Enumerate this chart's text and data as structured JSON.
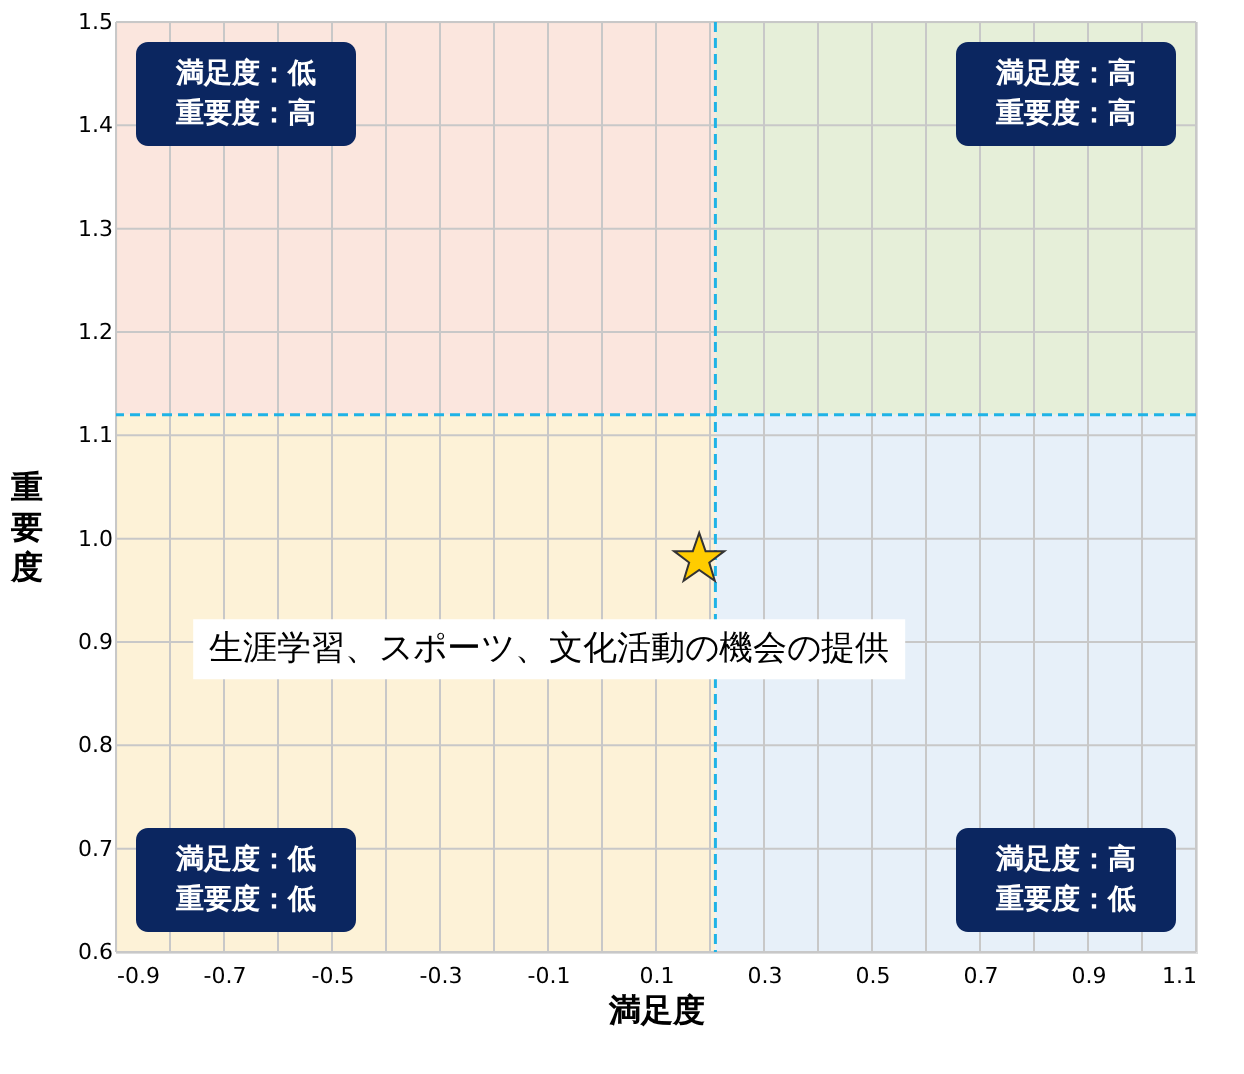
{
  "chart_data": {
    "type": "scatter",
    "xlabel": "満足度",
    "ylabel": "重要度",
    "x": [
      0.18
    ],
    "values": [
      0.98
    ],
    "color": "#ffcc00",
    "marker": "star",
    "xlim": [
      -0.9,
      1.1
    ],
    "ylim": [
      0.6,
      1.5
    ],
    "xticks": [
      -0.9,
      {
        "value": -0.8,
        "label": null
      },
      -0.7,
      {
        "value": -0.6,
        "label": null
      },
      -0.5,
      {
        "value": -0.4,
        "label": null
      },
      -0.3,
      {
        "value": -0.2,
        "label": null
      },
      -0.1,
      {
        "value": 0.0,
        "label": null
      },
      0.1,
      {
        "value": 0.2,
        "label": null
      },
      0.3,
      {
        "value": 0.4,
        "label": null
      },
      0.5,
      {
        "value": 0.6,
        "label": null
      },
      0.7,
      {
        "value": 0.8,
        "label": null
      },
      0.9,
      {
        "value": 1.0,
        "label": null
      },
      1.1
    ],
    "yticks": [
      0.6,
      0.7,
      0.8,
      0.9,
      {
        "value": 1.0,
        "label": "1.0"
      },
      1.1,
      1.2,
      1.3,
      1.4,
      1.5
    ],
    "grid": true,
    "ref_lines": [
      {
        "axis": "x",
        "value": 0.21,
        "color": "#1fb3e6",
        "line_style": "dashed"
      },
      {
        "axis": "y",
        "value": 1.12,
        "color": "#1fb3e6",
        "line_style": "dashed"
      }
    ],
    "bands": [
      {
        "axis": "x",
        "from": -0.9,
        "to": 0.21,
        "color": "#fbe3da"
      },
      {
        "axis": "x",
        "from": 0.21,
        "to": 1.1,
        "color": "#e3edd5"
      },
      {
        "axis": "x",
        "from": -0.9,
        "to": 0.21,
        "color": "#fdf1d3"
      },
      {
        "axis": "x",
        "from": 0.21,
        "to": 1.1,
        "color": "#e4eef8"
      }
    ],
    "annotations": [
      "満足度：低重要度：高",
      "満足度：高重要度：高",
      "満足度：低重要度：低",
      "満足度：高重要度：低",
      {
        "text": "生涯学習、スポーツ、文化活動の機会の提供",
        "x": 0.18,
        "y": 0.98
      }
    ]
  }
}
